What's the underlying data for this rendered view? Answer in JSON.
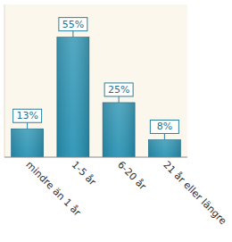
{
  "chart_data": {
    "type": "bar",
    "categories": [
      "mindre än 1 år",
      "1-5 år",
      "6-20 år",
      "21 år eller längre"
    ],
    "values": [
      13,
      55,
      25,
      8
    ],
    "value_labels": [
      "13%",
      "55%",
      "25%",
      "8%"
    ],
    "color": "#2591b3",
    "ylim": [
      0,
      70
    ],
    "data_labels": true,
    "tick_labels": "x"
  }
}
